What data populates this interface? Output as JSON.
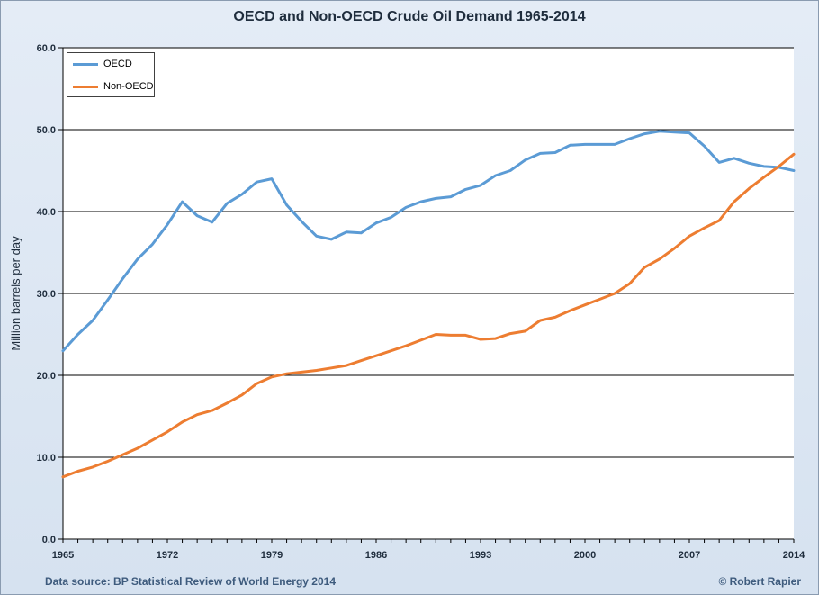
{
  "chart_data": {
    "type": "line",
    "title": "OECD and  Non-OECD Crude Oil Demand 1965-2014",
    "ylabel": "Million barrels per day",
    "xlabel": "",
    "xlim": [
      1965,
      2014
    ],
    "ylim": [
      0,
      60
    ],
    "yticks": [
      "0.0",
      "10.0",
      "20.0",
      "30.0",
      "40.0",
      "50.0",
      "60.0"
    ],
    "xticks": [
      "1965",
      "1972",
      "1979",
      "1986",
      "1993",
      "2000",
      "2007",
      "2014"
    ],
    "grid": "horizontal",
    "legend_position": "top-left",
    "x": [
      1965,
      1966,
      1967,
      1968,
      1969,
      1970,
      1971,
      1972,
      1973,
      1974,
      1975,
      1976,
      1977,
      1978,
      1979,
      1980,
      1981,
      1982,
      1983,
      1984,
      1985,
      1986,
      1987,
      1988,
      1989,
      1990,
      1991,
      1992,
      1993,
      1994,
      1995,
      1996,
      1997,
      1998,
      1999,
      2000,
      2001,
      2002,
      2003,
      2004,
      2005,
      2006,
      2007,
      2008,
      2009,
      2010,
      2011,
      2012,
      2013,
      2014
    ],
    "series": [
      {
        "name": "OECD",
        "color": "#5b9bd5",
        "values": [
          23.0,
          25.0,
          26.7,
          29.2,
          31.8,
          34.2,
          36.0,
          38.4,
          41.2,
          39.5,
          38.7,
          41.0,
          42.1,
          43.6,
          44.0,
          40.8,
          38.8,
          37.0,
          36.6,
          37.5,
          37.4,
          38.6,
          39.3,
          40.5,
          41.2,
          41.6,
          41.8,
          42.7,
          43.2,
          44.4,
          45.0,
          46.3,
          47.1,
          47.2,
          48.1,
          48.2,
          48.2,
          48.2,
          48.9,
          49.5,
          49.8,
          49.7,
          49.6,
          48.0,
          46.0,
          46.5,
          45.9,
          45.5,
          45.4,
          45.0
        ]
      },
      {
        "name": "Non-OECD",
        "color": "#ed7d31",
        "values": [
          7.6,
          8.3,
          8.8,
          9.5,
          10.3,
          11.1,
          12.1,
          13.1,
          14.3,
          15.2,
          15.7,
          16.6,
          17.6,
          19.0,
          19.8,
          20.2,
          20.4,
          20.6,
          20.9,
          21.2,
          21.8,
          22.4,
          23.0,
          23.6,
          24.3,
          25.0,
          24.9,
          24.9,
          24.4,
          24.5,
          25.1,
          25.4,
          26.7,
          27.1,
          27.9,
          28.6,
          29.3,
          30.0,
          31.2,
          33.2,
          34.2,
          35.5,
          37.0,
          38.0,
          38.9,
          41.2,
          42.8,
          44.2,
          45.5,
          47.0
        ]
      }
    ]
  },
  "footer": {
    "source": "Data source: BP Statistical Review of World Energy 2014",
    "credit": "© Robert Rapier"
  }
}
